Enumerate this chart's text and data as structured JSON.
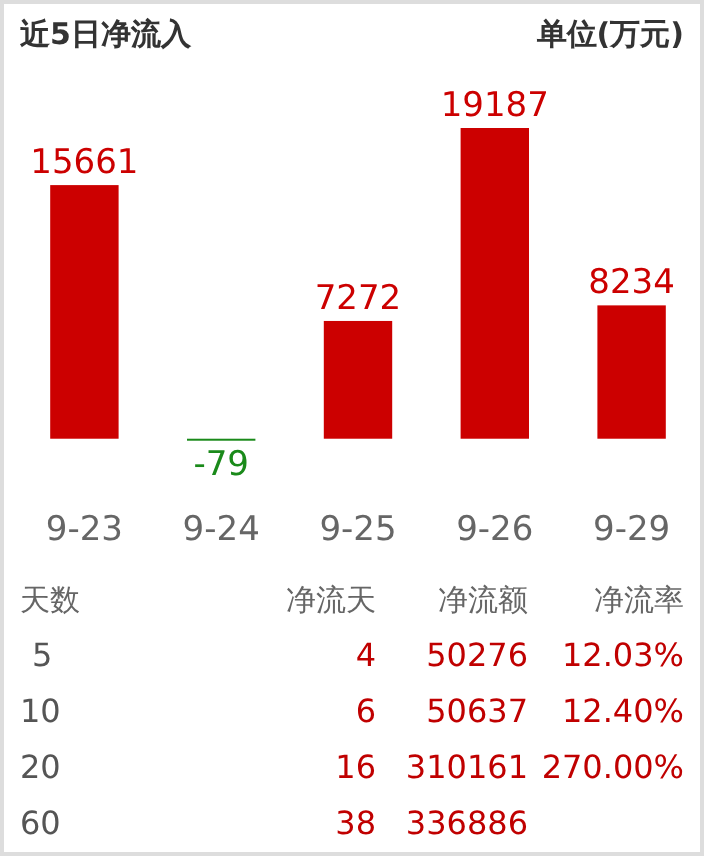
{
  "chart_data": [
    {
      "type": "bar",
      "title": "近5日净流入",
      "ylabel": "单位(万元)",
      "categories": [
        "9-23",
        "9-24",
        "9-25",
        "9-26",
        "9-29"
      ],
      "values": [
        15661,
        -79,
        7272,
        19187,
        8234
      ],
      "colors": [
        "#cc0000",
        "#1a8a1a",
        "#cc0000",
        "#cc0000",
        "#cc0000"
      ],
      "data_labels": true
    },
    {
      "type": "other",
      "categories": [
        "天数",
        "净流天",
        "净流额",
        "净流率"
      ],
      "colors": [
        "#555555",
        "#c00000",
        "#c00000",
        "#c00000"
      ],
      "cell_labels": [
        [
          "5",
          "4",
          "50276",
          "12.03%"
        ],
        [
          "10",
          "6",
          "50637",
          "12.40%"
        ],
        [
          "20",
          "16",
          "310161",
          "270.00%"
        ],
        [
          "60",
          "38",
          "336886",
          null
        ]
      ]
    }
  ]
}
